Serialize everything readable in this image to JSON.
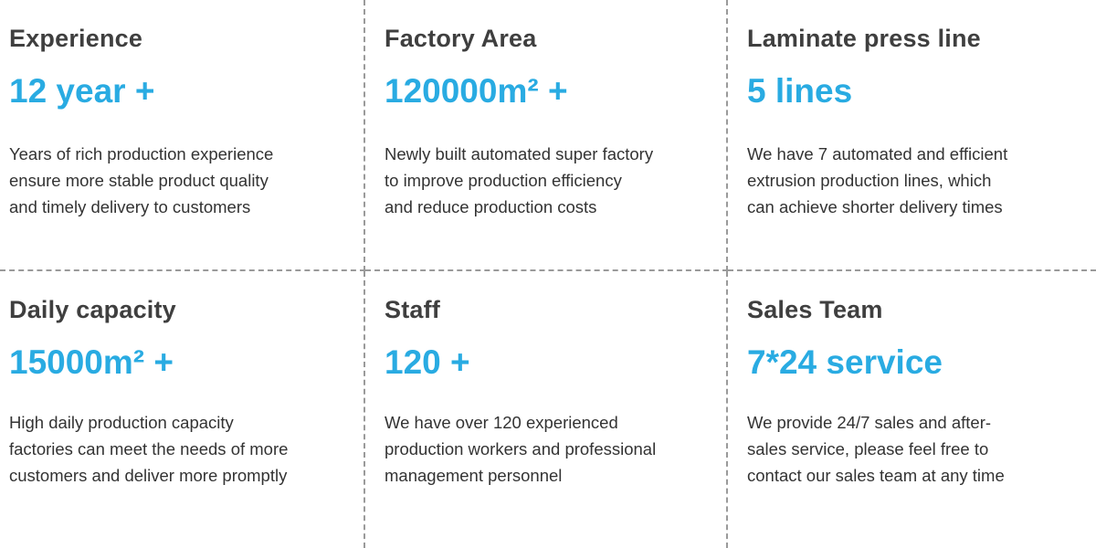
{
  "colors": {
    "accent": "#29abe2",
    "heading": "#3f3f3f",
    "body": "#333333",
    "divider": "#9a9a9a"
  },
  "cards": [
    {
      "title": "Experience",
      "value": "12 year +",
      "description": "Years of rich production experience\nensure more stable product quality\nand timely delivery to customers"
    },
    {
      "title": "Factory Area",
      "value": "120000m² +",
      "description": "Newly built automated super factory\nto improve production efficiency\nand reduce production costs"
    },
    {
      "title": "Laminate press line",
      "value": "5 lines",
      "description": "We have 7 automated and efficient\nextrusion production lines, which\ncan achieve shorter delivery times"
    },
    {
      "title": "Daily capacity",
      "value": "15000m² +",
      "description": "High daily production capacity\nfactories can meet the needs of more\ncustomers and deliver more promptly"
    },
    {
      "title": "Staff",
      "value": "120 +",
      "description": "We have over 120 experienced\nproduction workers and professional\nmanagement personnel"
    },
    {
      "title": "Sales Team",
      "value": "7*24 service",
      "description": "We provide 24/7 sales and after-\nsales service, please feel free to\ncontact our sales team at any time"
    }
  ]
}
